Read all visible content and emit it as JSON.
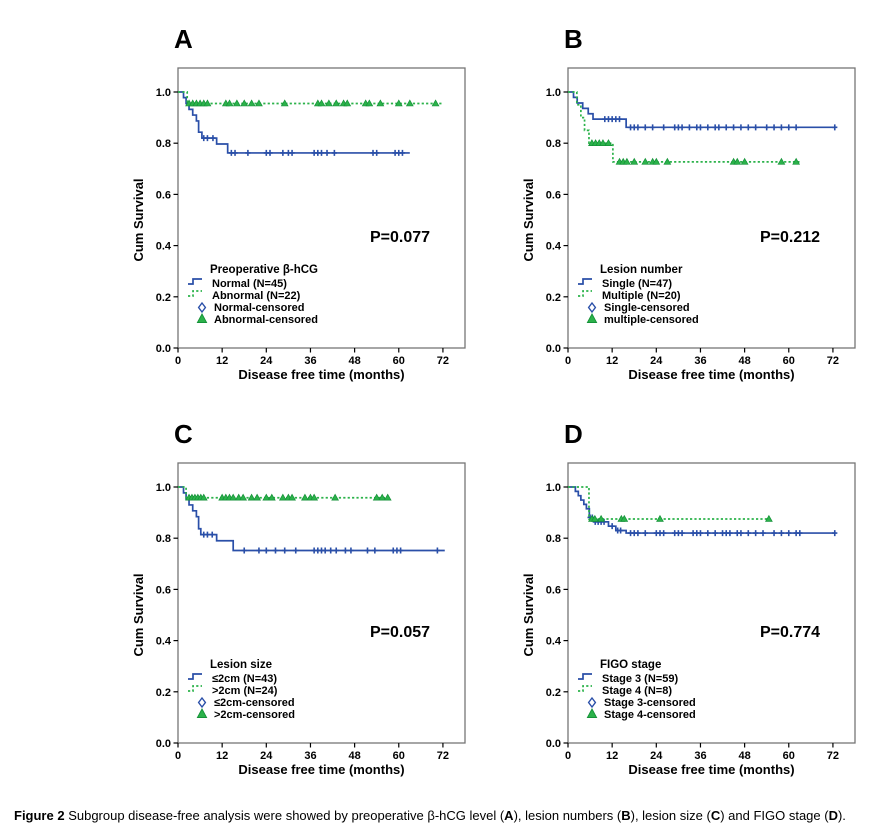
{
  "page": {
    "background": "#ffffff"
  },
  "colors": {
    "blue": "#2a4fa8",
    "green": "#2bb24a",
    "green_dark": "#149138",
    "frame": "#757575",
    "text": "#000000"
  },
  "caption": {
    "parts": [
      {
        "text": "Figure 2 ",
        "bold": true
      },
      {
        "text": "Subgroup disease-free analysis were showed by preoperative β-hCG level (",
        "bold": false
      },
      {
        "text": "A",
        "bold": true
      },
      {
        "text": "), lesion numbers (",
        "bold": false
      },
      {
        "text": "B",
        "bold": true
      },
      {
        "text": "), lesion size (",
        "bold": false
      },
      {
        "text": "C",
        "bold": true
      },
      {
        "text": ") and FIGO stage (",
        "bold": false
      },
      {
        "text": "D",
        "bold": true
      },
      {
        "text": ").",
        "bold": false
      }
    ]
  },
  "chart_data": [
    {
      "type": "line",
      "panel_letter": "A",
      "p_value": "P=0.077",
      "legend_title": "Preoperative β-hCG",
      "xlabel": "Disease free time (months)",
      "ylabel": "Cum Survival",
      "xticks": [
        0,
        12,
        24,
        36,
        48,
        60,
        72
      ],
      "yticks": [
        0.0,
        0.2,
        0.4,
        0.6,
        0.8,
        1.0
      ],
      "xlim": [
        0,
        78
      ],
      "ylim": [
        0,
        1.09
      ],
      "series": [
        {
          "name": "Normal (N=45)",
          "color": "blue",
          "dash": "solid",
          "curve_marker": "plus",
          "legend_marker": "diamond",
          "censored_label": "Normal-censored",
          "steps": [
            [
              0,
              1.0
            ],
            [
              1.5,
              0.978
            ],
            [
              2.2,
              0.955
            ],
            [
              3,
              0.932
            ],
            [
              4,
              0.91
            ],
            [
              5,
              0.887
            ],
            [
              5.6,
              0.843
            ],
            [
              6.5,
              0.82
            ],
            [
              10.5,
              0.797
            ],
            [
              13.5,
              0.762
            ]
          ],
          "end": 63,
          "censors": [
            7,
            8,
            9.5,
            14.5,
            15.5,
            19,
            24,
            25,
            28.5,
            30,
            31,
            37,
            38,
            39,
            40.5,
            42.5,
            53,
            54,
            59,
            60,
            61
          ]
        },
        {
          "name": "Abnormal (N=22)",
          "color": "green",
          "dash": "dotted",
          "curve_marker": "triangle",
          "legend_marker": "triangle",
          "censored_label": "Abnormal-censored",
          "steps": [
            [
              0,
              1.0
            ],
            [
              2.5,
              0.955
            ]
          ],
          "end": 72,
          "censors": [
            3,
            4,
            5,
            6,
            7,
            8,
            13,
            14,
            16,
            18,
            20,
            22,
            29,
            38,
            39,
            41,
            43,
            45,
            46,
            51,
            52,
            55,
            60,
            63,
            70
          ]
        }
      ]
    },
    {
      "type": "line",
      "panel_letter": "B",
      "p_value": "P=0.212",
      "legend_title": "Lesion number",
      "xlabel": "Disease free time (months)",
      "ylabel": "Cum Survival",
      "xticks": [
        0,
        12,
        24,
        36,
        48,
        60,
        72
      ],
      "yticks": [
        0.0,
        0.2,
        0.4,
        0.6,
        0.8,
        1.0
      ],
      "xlim": [
        0,
        78
      ],
      "ylim": [
        0,
        1.09
      ],
      "series": [
        {
          "name": "Single (N=47)",
          "color": "blue",
          "dash": "solid",
          "curve_marker": "plus",
          "legend_marker": "diamond",
          "censored_label": "Single-censored",
          "steps": [
            [
              0,
              1.0
            ],
            [
              1.5,
              0.979
            ],
            [
              2.5,
              0.957
            ],
            [
              4,
              0.936
            ],
            [
              5.5,
              0.915
            ],
            [
              6.8,
              0.894
            ],
            [
              15.8,
              0.862
            ]
          ],
          "end": 72.5,
          "censors": [
            10,
            11,
            12,
            13,
            14,
            17,
            18,
            19,
            21,
            23,
            26,
            29,
            30,
            31,
            33,
            35,
            36,
            38,
            40,
            41,
            43,
            45,
            47,
            49,
            51,
            54,
            56,
            58,
            60,
            62,
            72.5
          ]
        },
        {
          "name": "Multiple (N=20)",
          "color": "green",
          "dash": "dotted",
          "curve_marker": "triangle",
          "legend_marker": "triangle",
          "censored_label": "multiple-censored",
          "steps": [
            [
              0,
              1.0
            ],
            [
              2.4,
              0.95
            ],
            [
              3.5,
              0.9
            ],
            [
              4.5,
              0.85
            ],
            [
              5.7,
              0.8
            ],
            [
              12.2,
              0.727
            ]
          ],
          "end": 63,
          "censors": [
            6.5,
            7.5,
            8.5,
            9.5,
            11,
            14,
            15,
            16,
            18,
            21,
            23,
            24,
            27,
            45,
            46,
            48,
            58,
            62
          ]
        }
      ]
    },
    {
      "type": "line",
      "panel_letter": "C",
      "p_value": "P=0.057",
      "legend_title": "Lesion size",
      "xlabel": "Disease free time (months)",
      "ylabel": "Cum Survival",
      "xticks": [
        0,
        12,
        24,
        36,
        48,
        60,
        72
      ],
      "yticks": [
        0.0,
        0.2,
        0.4,
        0.6,
        0.8,
        1.0
      ],
      "xlim": [
        0,
        78
      ],
      "ylim": [
        0,
        1.09
      ],
      "series": [
        {
          "name": "≤2cm (N=43)",
          "color": "blue",
          "dash": "solid",
          "curve_marker": "plus",
          "legend_marker": "diamond",
          "censored_label": "≤2cm-censored",
          "steps": [
            [
              0,
              1.0
            ],
            [
              1.5,
              0.977
            ],
            [
              2.2,
              0.953
            ],
            [
              3,
              0.93
            ],
            [
              4,
              0.907
            ],
            [
              5,
              0.884
            ],
            [
              5.6,
              0.837
            ],
            [
              6.2,
              0.814
            ],
            [
              10.5,
              0.79
            ],
            [
              15,
              0.752
            ]
          ],
          "end": 72.5,
          "censors": [
            7,
            8,
            9.3,
            18,
            22,
            24,
            26.5,
            29,
            32,
            37,
            38,
            39,
            40,
            41.5,
            43,
            45.5,
            47,
            51.5,
            53.5,
            58.5,
            59.5,
            60.5,
            70.5
          ]
        },
        {
          "name": ">2cm (N=24)",
          "color": "green",
          "dash": "dotted",
          "curve_marker": "triangle",
          "legend_marker": "triangle",
          "censored_label": ">2cm-censored",
          "steps": [
            [
              0,
              1.0
            ],
            [
              2.2,
              0.958
            ]
          ],
          "end": 57,
          "censors": [
            3,
            3.8,
            4.6,
            5.4,
            6.2,
            7,
            12,
            13,
            14,
            15,
            16.5,
            17.7,
            20,
            21.5,
            24,
            25.5,
            28.5,
            30,
            31,
            34.5,
            36,
            37,
            42.7,
            54,
            55.5,
            57
          ]
        }
      ]
    },
    {
      "type": "line",
      "panel_letter": "D",
      "p_value": "P=0.774",
      "legend_title": "FIGO stage",
      "xlabel": "Disease free time (months)",
      "ylabel": "Cum Survival",
      "xticks": [
        0,
        12,
        24,
        36,
        48,
        60,
        72
      ],
      "yticks": [
        0.0,
        0.2,
        0.4,
        0.6,
        0.8,
        1.0
      ],
      "xlim": [
        0,
        78
      ],
      "ylim": [
        0,
        1.09
      ],
      "series": [
        {
          "name": "Stage 3 (N=59)",
          "color": "blue",
          "dash": "solid",
          "curve_marker": "plus",
          "legend_marker": "diamond",
          "censored_label": "Stage 3-censored",
          "steps": [
            [
              0,
              1.0
            ],
            [
              2,
              0.983
            ],
            [
              2.8,
              0.966
            ],
            [
              3.5,
              0.949
            ],
            [
              4.3,
              0.932
            ],
            [
              5,
              0.915
            ],
            [
              5.8,
              0.881
            ],
            [
              7,
              0.864
            ],
            [
              11,
              0.847
            ],
            [
              13,
              0.83
            ],
            [
              15.8,
              0.82
            ]
          ],
          "end": 72.5,
          "censors": [
            6,
            6.6,
            7.4,
            8.2,
            9,
            9.8,
            12,
            13.5,
            14.3,
            17,
            18,
            19,
            21,
            24,
            25,
            26,
            29,
            30,
            31,
            34,
            35,
            36,
            38,
            40,
            42,
            43,
            44,
            46,
            47,
            49,
            51,
            53,
            56,
            58,
            60,
            62,
            63,
            72.5
          ]
        },
        {
          "name": "Stage 4 (N=8)",
          "color": "green",
          "dash": "dotted",
          "curve_marker": "triangle",
          "legend_marker": "triangle",
          "censored_label": "Stage 4-censored",
          "steps": [
            [
              0,
              1.0
            ],
            [
              5.7,
              0.875
            ]
          ],
          "end": 54.6,
          "censors": [
            6.5,
            7.3,
            9,
            14.5,
            15.3,
            25,
            54.6
          ]
        }
      ]
    }
  ]
}
